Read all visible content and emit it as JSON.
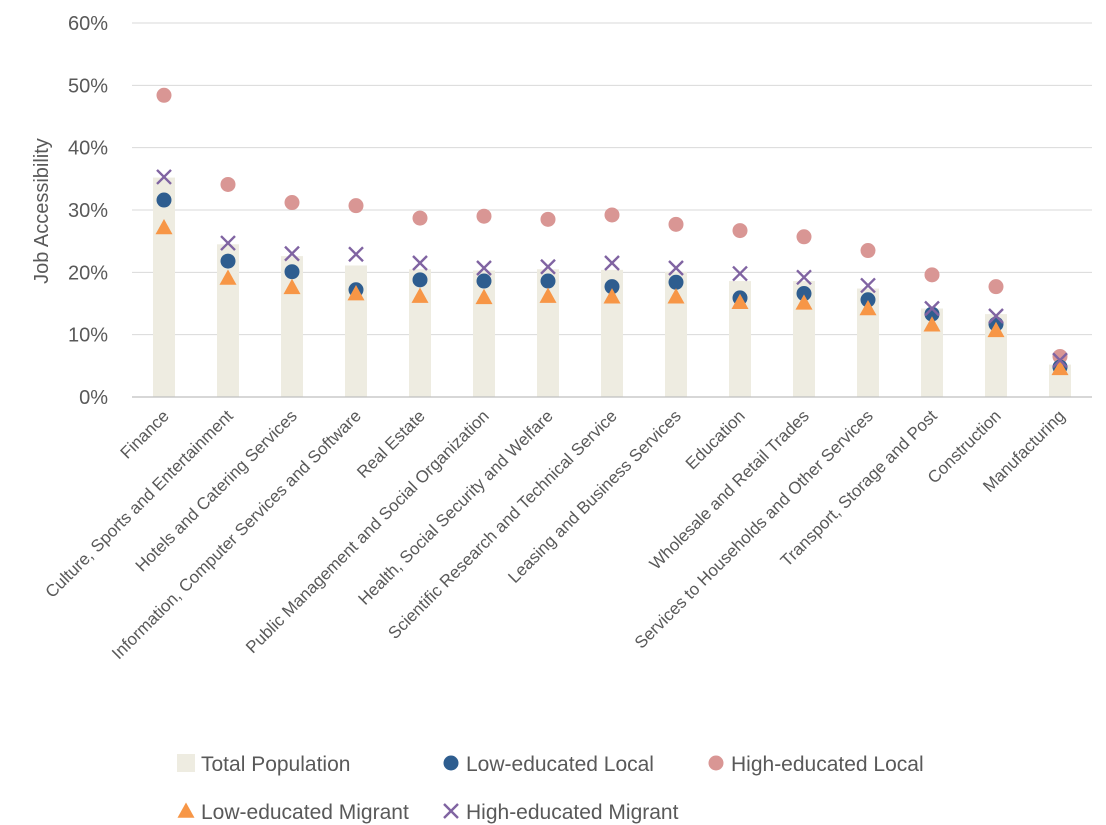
{
  "chart_data": {
    "type": "bar",
    "ylabel": "Job Accessibility",
    "xlabel": "",
    "ylim": [
      0,
      0.6
    ],
    "yticks": [
      0,
      0.1,
      0.2,
      0.3,
      0.4,
      0.5,
      0.6
    ],
    "ytick_labels": [
      "0%",
      "10%",
      "20%",
      "30%",
      "40%",
      "50%",
      "60%"
    ],
    "grid": "horizontal",
    "legend_position": "bottom",
    "categories": [
      "Finance",
      "Culture, Sports and Entertainment",
      "Hotels and Catering Services",
      "Information, Computer Services and Software",
      "Real Estate",
      "Public Management and Social Organization",
      "Health, Social Security and Welfare",
      "Scientific Research and Technical Service",
      "Leasing and Business Services",
      "Education",
      "Wholesale and Retail Trades",
      "Services to Households and Other Services",
      "Transport, Storage and Post",
      "Construction",
      "Manufacturing"
    ],
    "series": [
      {
        "name": "Total Population",
        "kind": "bar",
        "color": "#eeece1",
        "values": [
          0.352,
          0.245,
          0.226,
          0.211,
          0.205,
          0.203,
          0.205,
          0.204,
          0.201,
          0.186,
          0.186,
          0.174,
          0.142,
          0.133,
          0.052
        ]
      },
      {
        "name": "Low-educated Local",
        "kind": "circle",
        "color": "#2e5d8f",
        "values": [
          0.316,
          0.218,
          0.201,
          0.172,
          0.188,
          0.186,
          0.186,
          0.177,
          0.184,
          0.159,
          0.166,
          0.156,
          0.133,
          0.117,
          0.048
        ]
      },
      {
        "name": "High-educated Local",
        "kind": "circle",
        "color": "#d99694",
        "values": [
          0.484,
          0.341,
          0.312,
          0.307,
          0.287,
          0.29,
          0.285,
          0.292,
          0.277,
          0.267,
          0.257,
          0.235,
          0.196,
          0.177,
          0.065
        ]
      },
      {
        "name": "Low-educated Migrant",
        "kind": "triangle",
        "color": "#f79646",
        "values": [
          0.272,
          0.191,
          0.176,
          0.166,
          0.162,
          0.16,
          0.162,
          0.161,
          0.161,
          0.152,
          0.151,
          0.142,
          0.116,
          0.107,
          0.046
        ]
      },
      {
        "name": "High-educated Migrant",
        "kind": "cross",
        "color": "#8064a2",
        "values": [
          0.353,
          0.247,
          0.23,
          0.229,
          0.215,
          0.207,
          0.209,
          0.215,
          0.207,
          0.198,
          0.192,
          0.179,
          0.142,
          0.13,
          0.059
        ]
      }
    ]
  }
}
